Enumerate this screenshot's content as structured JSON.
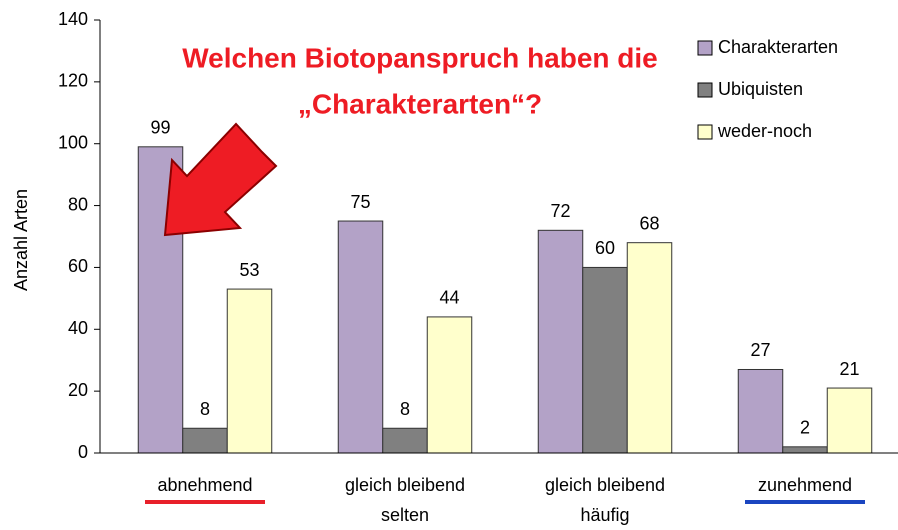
{
  "chart_data": {
    "type": "bar",
    "title": [
      "Welchen Biotopanspruch haben die",
      "„Charakterarten“?"
    ],
    "y_label": "Anzahl Arten",
    "categories": [
      [
        "abnehmend"
      ],
      [
        "gleich bleibend",
        "selten"
      ],
      [
        "gleich bleibend",
        "häufig"
      ],
      [
        "zunehmend"
      ]
    ],
    "category_underline_colors": [
      "#e8202a",
      "#f5c01a",
      "#17843a",
      "#1a45c0"
    ],
    "series": [
      {
        "name": "Charakterarten",
        "color": "#b3a2c7",
        "values": [
          99,
          75,
          72,
          27
        ]
      },
      {
        "name": "Ubiquisten",
        "color": "#808080",
        "values": [
          8,
          8,
          60,
          2
        ]
      },
      {
        "name": "weder-noch",
        "color": "#ffffcc",
        "values": [
          53,
          44,
          68,
          21
        ]
      }
    ],
    "ylim": [
      0,
      140
    ],
    "yticks": [
      0,
      20,
      40,
      60,
      80,
      100,
      120,
      140
    ],
    "legend": "top-right"
  }
}
